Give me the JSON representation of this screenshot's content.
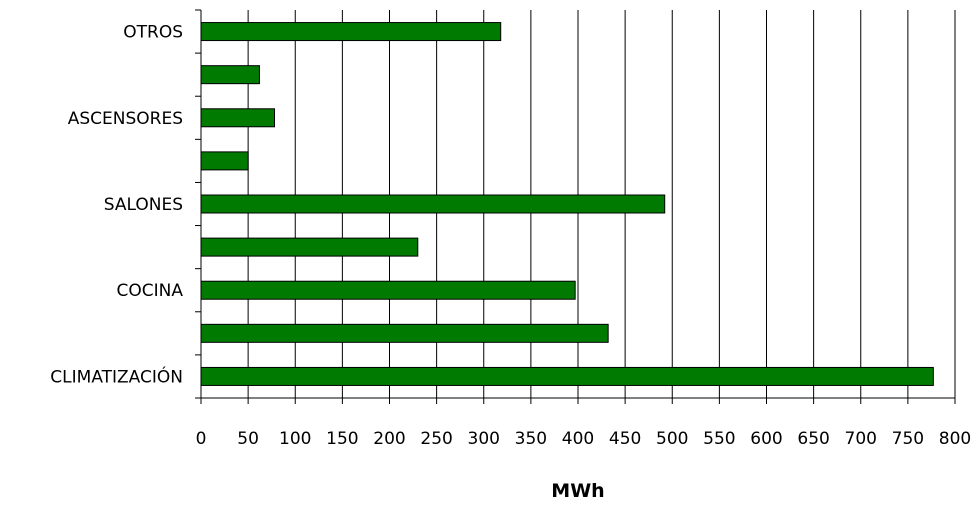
{
  "chart_data": {
    "type": "bar",
    "orientation": "horizontal",
    "categories": [
      "CLIMATIZACIÓN",
      "",
      "COCINA",
      "",
      "SALONES",
      "",
      "ASCENSORES",
      "",
      "OTROS"
    ],
    "values": [
      777,
      432,
      397,
      230,
      492,
      50,
      78,
      62,
      318
    ],
    "xlabel": "MWh",
    "xlim": [
      0,
      800
    ],
    "xticks": [
      "0",
      "50",
      "100",
      "150",
      "200",
      "250",
      "300",
      "350",
      "400",
      "450",
      "500",
      "550",
      "600",
      "650",
      "700",
      "750",
      "800"
    ],
    "grid": "vertical",
    "bar_color": "#007a00"
  }
}
